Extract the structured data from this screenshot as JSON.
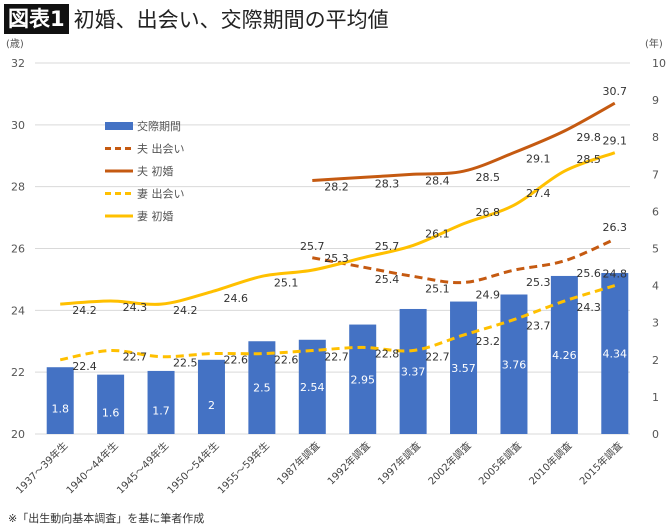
{
  "title_badge": "図表1",
  "title": "初婚、出会い、交際期間の平均値",
  "note": "※「出生動向基本調査」を基に筆者作成",
  "chart_data": {
    "type": "bar+line",
    "categories": [
      "1937～39年生",
      "1940～44年生",
      "1945～49年生",
      "1950～54年生",
      "1955～59年生",
      "1987年調査",
      "1992年調査",
      "1997年調査",
      "2002年調査",
      "2005年調査",
      "2010年調査",
      "2015年調査"
    ],
    "y_left": {
      "unit_label": "(歳)",
      "range": [
        20,
        32
      ],
      "ticks": [
        20,
        22,
        24,
        26,
        28,
        30,
        32
      ]
    },
    "y_right": {
      "unit_label": "(年)",
      "range": [
        0,
        10
      ],
      "ticks": [
        0,
        1,
        2,
        3,
        4,
        5,
        6,
        7,
        8,
        9,
        10
      ]
    },
    "grid": true,
    "legend_placement": "upper-left",
    "series": [
      {
        "name": "交際期間",
        "type": "bar",
        "axis": "right",
        "color": "#4472C4",
        "values": [
          1.8,
          1.6,
          1.7,
          2,
          2.5,
          2.54,
          2.95,
          3.37,
          3.57,
          3.76,
          4.26,
          4.34
        ]
      },
      {
        "name": "夫 出会い",
        "type": "line",
        "dash": true,
        "axis": "left",
        "color": "#C55A11",
        "values": [
          null,
          null,
          null,
          null,
          null,
          25.7,
          25.4,
          25.1,
          24.9,
          25.3,
          25.6,
          26.3
        ]
      },
      {
        "name": "夫 初婚",
        "type": "line",
        "dash": false,
        "axis": "left",
        "color": "#C55A11",
        "values": [
          null,
          null,
          null,
          null,
          null,
          28.2,
          28.3,
          28.4,
          28.5,
          29.1,
          29.8,
          30.7
        ]
      },
      {
        "name": "妻 出会い",
        "type": "line",
        "dash": true,
        "axis": "left",
        "color": "#FFC000",
        "values": [
          22.4,
          22.7,
          22.5,
          22.6,
          22.6,
          22.7,
          22.8,
          22.7,
          23.2,
          23.7,
          24.3,
          24.8
        ]
      },
      {
        "name": "妻 初婚",
        "type": "line",
        "dash": false,
        "axis": "left",
        "color": "#FFC000",
        "values": [
          24.2,
          24.3,
          24.2,
          24.6,
          25.1,
          25.3,
          25.7,
          26.1,
          26.8,
          27.4,
          28.5,
          29.1
        ]
      }
    ]
  }
}
